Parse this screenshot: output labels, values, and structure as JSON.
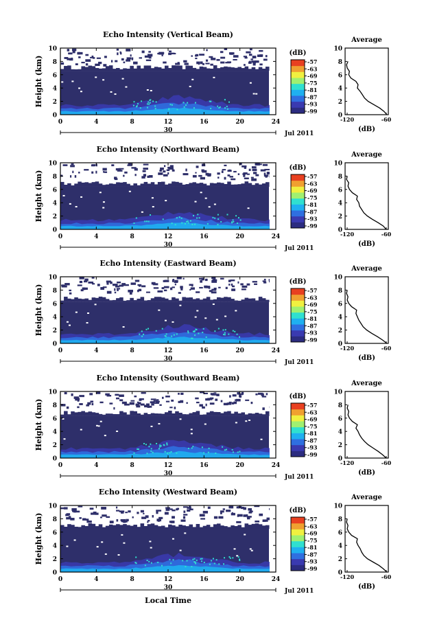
{
  "figure": {
    "xlabel": "Local Time",
    "date_day": "30",
    "date_label": "Jul 2011",
    "ylabel": "Height (km)",
    "colorbar_unit": "(dB)",
    "colorbar_ticks": [
      "-57",
      "-63",
      "-69",
      "-75",
      "-81",
      "-87",
      "-93",
      "-99"
    ],
    "colorbar_colors": [
      "#2c2c80",
      "#3a3ab0",
      "#2f6fe0",
      "#1fb0f0",
      "#30e0d0",
      "#a0f070",
      "#f0f040",
      "#f0a030",
      "#e84020"
    ],
    "background_color": "#2e2f6a",
    "profile_title": "Average",
    "profile_xlabel": "(dB)",
    "profile_xticks": [
      "-120",
      "-60"
    ]
  },
  "chart_data": [
    {
      "type": "heatmap",
      "title": "Echo Intensity (Vertical Beam)",
      "xlabel": "Local Time",
      "ylabel": "Height (km)",
      "x_ticks": [
        0,
        4,
        8,
        12,
        16,
        20,
        24
      ],
      "y_ticks": [
        0,
        2,
        4,
        6,
        8,
        10
      ],
      "xlim": [
        0,
        24
      ],
      "ylim": [
        0,
        10
      ],
      "colorbar_range_dB": [
        -99,
        -57
      ],
      "echo_top_km": 6.8,
      "profile": {
        "title": "Average",
        "xlabel": "(dB)",
        "xlim": [
          -120,
          -60
        ],
        "heights_km": [
          0,
          0.5,
          1,
          1.5,
          2,
          2.5,
          3,
          3.5,
          4,
          4.5,
          5,
          5.5,
          6,
          6.5,
          7,
          7.5,
          8
        ],
        "values_dB": [
          -62,
          -66,
          -72,
          -80,
          -88,
          -93,
          -96,
          -99,
          -103,
          -102,
          -105,
          -112,
          -115,
          -114,
          -117,
          -118,
          -116
        ]
      }
    },
    {
      "type": "heatmap",
      "title": "Echo Intensity (Northward Beam)",
      "xlabel": "Local Time",
      "ylabel": "Height (km)",
      "x_ticks": [
        0,
        4,
        8,
        12,
        16,
        20,
        24
      ],
      "y_ticks": [
        0,
        2,
        4,
        6,
        8,
        10
      ],
      "xlim": [
        0,
        24
      ],
      "ylim": [
        0,
        10
      ],
      "colorbar_range_dB": [
        -99,
        -57
      ],
      "echo_top_km": 6.6,
      "profile": {
        "title": "Average",
        "xlabel": "(dB)",
        "xlim": [
          -120,
          -60
        ],
        "heights_km": [
          0,
          0.5,
          1,
          1.5,
          2,
          2.5,
          3,
          3.5,
          4,
          4.5,
          5,
          5.5,
          6,
          6.5,
          7,
          7.5,
          8
        ],
        "values_dB": [
          -63,
          -67,
          -74,
          -82,
          -89,
          -94,
          -97,
          -100,
          -101,
          -104,
          -103,
          -110,
          -114,
          -116,
          -115,
          -118,
          -117
        ]
      }
    },
    {
      "type": "heatmap",
      "title": "Echo Intensity (Eastward Beam)",
      "xlabel": "Local Time",
      "ylabel": "Height (km)",
      "x_ticks": [
        0,
        4,
        8,
        12,
        16,
        20,
        24
      ],
      "y_ticks": [
        0,
        2,
        4,
        6,
        8,
        10
      ],
      "xlim": [
        0,
        24
      ],
      "ylim": [
        0,
        10
      ],
      "colorbar_range_dB": [
        -99,
        -57
      ],
      "echo_top_km": 6.4,
      "profile": {
        "title": "Average",
        "xlabel": "(dB)",
        "xlim": [
          -120,
          -60
        ],
        "heights_km": [
          0,
          0.5,
          1,
          1.5,
          2,
          2.5,
          3,
          3.5,
          4,
          4.5,
          5,
          5.5,
          6,
          6.5,
          7,
          7.5,
          8
        ],
        "values_dB": [
          -62,
          -68,
          -75,
          -83,
          -90,
          -95,
          -98,
          -101,
          -103,
          -105,
          -104,
          -111,
          -115,
          -117,
          -116,
          -118,
          -117
        ]
      }
    },
    {
      "type": "heatmap",
      "title": "Echo Intensity (Southward Beam)",
      "xlabel": "Local Time",
      "ylabel": "Height (km)",
      "x_ticks": [
        0,
        4,
        8,
        12,
        16,
        20,
        24
      ],
      "y_ticks": [
        0,
        2,
        4,
        6,
        8,
        10
      ],
      "xlim": [
        0,
        24
      ],
      "ylim": [
        0,
        10
      ],
      "colorbar_range_dB": [
        -99,
        -57
      ],
      "echo_top_km": 6.5,
      "profile": {
        "title": "Average",
        "xlabel": "(dB)",
        "xlim": [
          -120,
          -60
        ],
        "heights_km": [
          0,
          0.5,
          1,
          1.5,
          2,
          2.5,
          3,
          3.5,
          4,
          4.5,
          5,
          5.5,
          6,
          6.5,
          7,
          7.5,
          8
        ],
        "values_dB": [
          -63,
          -68,
          -74,
          -81,
          -88,
          -93,
          -97,
          -100,
          -102,
          -105,
          -103,
          -110,
          -114,
          -116,
          -115,
          -117,
          -116
        ]
      }
    },
    {
      "type": "heatmap",
      "title": "Echo Intensity (Westward Beam)",
      "xlabel": "Local Time",
      "ylabel": "Height (km)",
      "x_ticks": [
        0,
        4,
        8,
        12,
        16,
        20,
        24
      ],
      "y_ticks": [
        0,
        2,
        4,
        6,
        8,
        10
      ],
      "xlim": [
        0,
        24
      ],
      "ylim": [
        0,
        10
      ],
      "colorbar_range_dB": [
        -99,
        -57
      ],
      "echo_top_km": 6.7,
      "profile": {
        "title": "Average",
        "xlabel": "(dB)",
        "xlim": [
          -120,
          -60
        ],
        "heights_km": [
          0,
          0.5,
          1,
          1.5,
          2,
          2.5,
          3,
          3.5,
          4,
          4.5,
          5,
          5.5,
          6,
          6.5,
          7,
          7.5,
          8
        ],
        "values_dB": [
          -62,
          -67,
          -73,
          -81,
          -89,
          -94,
          -97,
          -99,
          -102,
          -104,
          -103,
          -111,
          -115,
          -117,
          -116,
          -118,
          -117
        ]
      }
    }
  ]
}
